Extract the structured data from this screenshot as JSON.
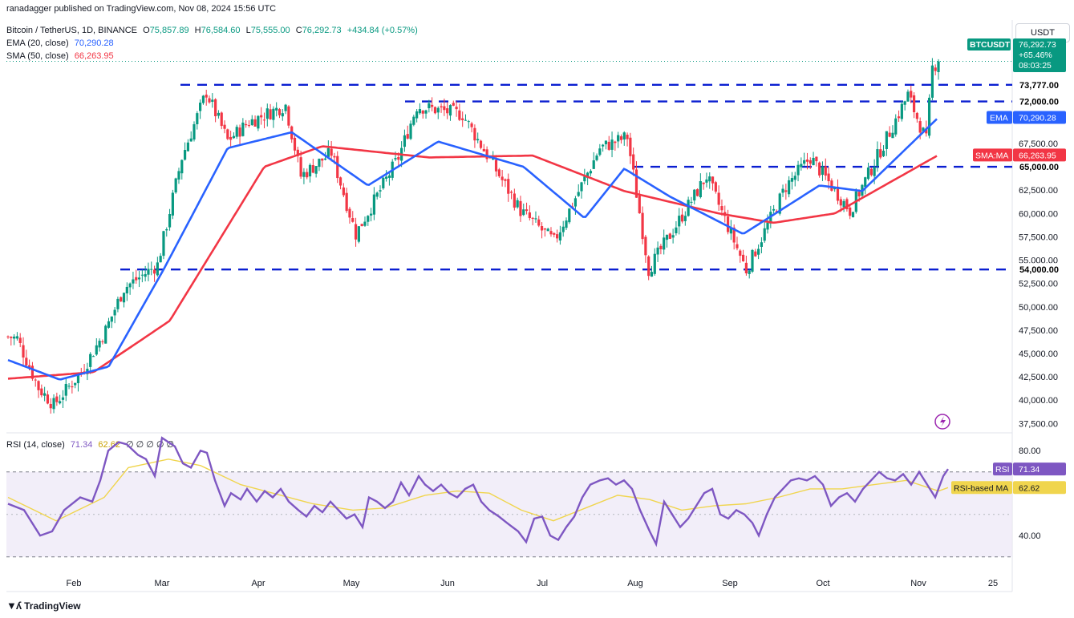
{
  "header": {
    "attribution": "ranadagger published on TradingView.com, Nov 08, 2024 15:56 UTC",
    "symbol": "Bitcoin / TetherUS, 1D, BINANCE",
    "open_label": "O",
    "open": "75,857.89",
    "high_label": "H",
    "high": "76,584.60",
    "low_label": "L",
    "low": "75,555.00",
    "close_label": "C",
    "close": "76,292.73",
    "change": "+434.84 (+0.57%)",
    "ema_label": "EMA (20, close)",
    "ema_value": "70,290.28",
    "sma_label": "SMA (50, close)",
    "sma_value": "66,263.95",
    "rsi_label": "RSI (14, close)",
    "rsi_value": "71.34",
    "rsi_ma_value": "62.62",
    "rsi_extra": "∅ ∅ ∅ ∅ ∅"
  },
  "currency_button": "USDT",
  "branding": "TradingView",
  "colors": {
    "up": "#089981",
    "down": "#f23645",
    "ema": "#2962ff",
    "sma": "#f23645",
    "rsi": "#7e57c2",
    "rsi_ma": "#f0d54e",
    "level": "#0b1fd1",
    "rsi_band": "#ede7f6"
  },
  "chart_data": [
    {
      "type": "candlestick",
      "title": "Bitcoin / TetherUS, 1D, BINANCE",
      "x_tick_labels": [
        "Feb",
        "Mar",
        "Apr",
        "May",
        "Jun",
        "Jul",
        "Aug",
        "Sep",
        "Oct",
        "Nov",
        "25"
      ],
      "y_tick_labels": [
        "37,500.00",
        "40,000.00",
        "42,500.00",
        "45,000.00",
        "47,500.00",
        "50,000.00",
        "52,500.00",
        "55,000.00",
        "57,500.00",
        "60,000.00",
        "62,500.00",
        "67,500.00"
      ],
      "ylim": [
        36500,
        79000
      ],
      "horizontal_levels": [
        {
          "label": "73,777.00",
          "value": 73777
        },
        {
          "label": "72,000.00",
          "value": 72000
        },
        {
          "label": "65,000.00",
          "value": 65000
        },
        {
          "label": "54,000.00",
          "value": 54000
        }
      ],
      "price_tags": [
        {
          "name": "BTCUSDT",
          "label": "BTCUSDT",
          "sub": [
            "76,292.73",
            "+65.46%",
            "08:03:25"
          ]
        },
        {
          "name": "EMA",
          "label": "EMA",
          "value": "70,290.28"
        },
        {
          "name": "SMA:MA",
          "label": "SMA:MA",
          "value": "66,263.95"
        }
      ],
      "series": [
        {
          "name": "BTCUSDT",
          "key_points": [
            [
              "2024-01-08",
              46800
            ],
            [
              "2024-01-11",
              46600
            ],
            [
              "2024-01-18",
              41300
            ],
            [
              "2024-01-23",
              39500
            ],
            [
              "2024-02-01",
              43000
            ],
            [
              "2024-02-09",
              47500
            ],
            [
              "2024-02-15",
              52000
            ],
            [
              "2024-02-26",
              54500
            ],
            [
              "2024-03-05",
              66000
            ],
            [
              "2024-03-13",
              73000
            ],
            [
              "2024-03-20",
              67800
            ],
            [
              "2024-03-27",
              69800
            ],
            [
              "2024-04-08",
              71600
            ],
            [
              "2024-04-13",
              64000
            ],
            [
              "2024-04-23",
              66500
            ],
            [
              "2024-05-01",
              57800
            ],
            [
              "2024-05-15",
              66000
            ],
            [
              "2024-05-21",
              71500
            ],
            [
              "2024-06-05",
              70600
            ],
            [
              "2024-06-24",
              60300
            ],
            [
              "2024-07-05",
              57000
            ],
            [
              "2024-07-20",
              67000
            ],
            [
              "2024-07-29",
              68200
            ],
            [
              "2024-08-05",
              54000
            ],
            [
              "2024-08-24",
              64000
            ],
            [
              "2024-09-06",
              53950
            ],
            [
              "2024-09-19",
              62900
            ],
            [
              "2024-09-27",
              66000
            ],
            [
              "2024-10-10",
              60300
            ],
            [
              "2024-10-21",
              67400
            ],
            [
              "2024-10-29",
              72700
            ],
            [
              "2024-11-04",
              67800
            ],
            [
              "2024-11-06",
              75600
            ],
            [
              "2024-11-08",
              76292
            ]
          ]
        },
        {
          "name": "EMA (20, close)",
          "key_points": [
            [
              "2024-01-08",
              44300
            ],
            [
              "2024-01-25",
              42200
            ],
            [
              "2024-02-10",
              43600
            ],
            [
              "2024-02-28",
              54000
            ],
            [
              "2024-03-20",
              67000
            ],
            [
              "2024-04-10",
              68700
            ],
            [
              "2024-05-05",
              63000
            ],
            [
              "2024-05-28",
              67700
            ],
            [
              "2024-06-25",
              65000
            ],
            [
              "2024-07-15",
              59500
            ],
            [
              "2024-07-28",
              64800
            ],
            [
              "2024-08-12",
              61800
            ],
            [
              "2024-09-05",
              57800
            ],
            [
              "2024-09-30",
              63000
            ],
            [
              "2024-10-14",
              62400
            ],
            [
              "2024-11-08",
              70290
            ]
          ]
        },
        {
          "name": "SMA (50, close)",
          "key_points": [
            [
              "2024-01-08",
              42300
            ],
            [
              "2024-02-05",
              43000
            ],
            [
              "2024-03-01",
              48500
            ],
            [
              "2024-04-01",
              65000
            ],
            [
              "2024-04-20",
              67200
            ],
            [
              "2024-05-25",
              66000
            ],
            [
              "2024-06-28",
              66200
            ],
            [
              "2024-07-28",
              62400
            ],
            [
              "2024-08-28",
              60000
            ],
            [
              "2024-09-15",
              59000
            ],
            [
              "2024-10-05",
              60000
            ],
            [
              "2024-11-08",
              66264
            ]
          ]
        }
      ]
    },
    {
      "type": "line",
      "title": "RSI (14, close)",
      "y_tick_labels": [
        "40.00",
        "80.00"
      ],
      "ylim": [
        25,
        88
      ],
      "bands": [
        30,
        70
      ],
      "series": [
        {
          "name": "RSI",
          "value_label": "71.34",
          "values": [
            [
              0,
              55
            ],
            [
              20,
              52
            ],
            [
              40,
              40
            ],
            [
              55,
              42
            ],
            [
              70,
              52
            ],
            [
              90,
              58
            ],
            [
              105,
              56
            ],
            [
              115,
              66
            ],
            [
              125,
              80
            ],
            [
              138,
              84
            ],
            [
              148,
              83
            ],
            [
              162,
              78
            ],
            [
              172,
              76
            ],
            [
              183,
              68
            ],
            [
              192,
              86
            ],
            [
              200,
              84
            ],
            [
              208,
              82
            ],
            [
              218,
              74
            ],
            [
              228,
              72
            ],
            [
              240,
              80
            ],
            [
              248,
              79
            ],
            [
              258,
              66
            ],
            [
              270,
              54
            ],
            [
              278,
              60
            ],
            [
              290,
              57
            ],
            [
              298,
              62
            ],
            [
              310,
              56
            ],
            [
              320,
              61
            ],
            [
              330,
              58
            ],
            [
              340,
              62
            ],
            [
              350,
              56
            ],
            [
              362,
              52
            ],
            [
              372,
              49
            ],
            [
              382,
              54
            ],
            [
              392,
              51
            ],
            [
              402,
              56
            ],
            [
              412,
              52
            ],
            [
              422,
              48
            ],
            [
              432,
              50
            ],
            [
              442,
              44
            ],
            [
              450,
              58
            ],
            [
              460,
              56
            ],
            [
              470,
              53
            ],
            [
              480,
              56
            ],
            [
              490,
              65
            ],
            [
              500,
              59
            ],
            [
              512,
              68
            ],
            [
              520,
              64
            ],
            [
              530,
              61
            ],
            [
              540,
              64
            ],
            [
              550,
              60
            ],
            [
              560,
              58
            ],
            [
              570,
              62
            ],
            [
              580,
              64
            ],
            [
              590,
              56
            ],
            [
              600,
              52
            ],
            [
              612,
              49
            ],
            [
              622,
              46
            ],
            [
              636,
              42
            ],
            [
              646,
              37
            ],
            [
              656,
              48
            ],
            [
              666,
              49
            ],
            [
              676,
              40
            ],
            [
              686,
              38
            ],
            [
              696,
              44
            ],
            [
              706,
              49
            ],
            [
              716,
              58
            ],
            [
              726,
              64
            ],
            [
              738,
              66
            ],
            [
              748,
              67
            ],
            [
              758,
              64
            ],
            [
              768,
              66
            ],
            [
              778,
              62
            ],
            [
              788,
              52
            ],
            [
              800,
              42
            ],
            [
              808,
              36
            ],
            [
              818,
              56
            ],
            [
              828,
              50
            ],
            [
              838,
              44
            ],
            [
              848,
              48
            ],
            [
              858,
              54
            ],
            [
              868,
              60
            ],
            [
              878,
              62
            ],
            [
              888,
              50
            ],
            [
              898,
              48
            ],
            [
              908,
              52
            ],
            [
              918,
              50
            ],
            [
              928,
              46
            ],
            [
              936,
              40
            ],
            [
              946,
              50
            ],
            [
              956,
              58
            ],
            [
              966,
              62
            ],
            [
              976,
              66
            ],
            [
              986,
              67
            ],
            [
              996,
              66
            ],
            [
              1006,
              68
            ],
            [
              1016,
              64
            ],
            [
              1026,
              54
            ],
            [
              1036,
              58
            ],
            [
              1046,
              60
            ],
            [
              1056,
              56
            ],
            [
              1066,
              62
            ],
            [
              1076,
              66
            ],
            [
              1086,
              70
            ],
            [
              1096,
              67
            ],
            [
              1106,
              66
            ],
            [
              1116,
              69
            ],
            [
              1126,
              64
            ],
            [
              1136,
              70
            ],
            [
              1146,
              64
            ],
            [
              1156,
              58
            ],
            [
              1166,
              68
            ],
            [
              1172,
              71.34
            ]
          ]
        },
        {
          "name": "RSI-based MA",
          "value_label": "62.62",
          "values": [
            [
              0,
              58
            ],
            [
              60,
              47
            ],
            [
              120,
              58
            ],
            [
              150,
              72
            ],
            [
              200,
              76
            ],
            [
              240,
              73
            ],
            [
              290,
              64
            ],
            [
              330,
              60
            ],
            [
              380,
              55
            ],
            [
              430,
              52
            ],
            [
              470,
              53
            ],
            [
              520,
              59
            ],
            [
              560,
              61
            ],
            [
              600,
              60
            ],
            [
              640,
              52
            ],
            [
              680,
              47
            ],
            [
              720,
              53
            ],
            [
              760,
              59
            ],
            [
              800,
              57
            ],
            [
              840,
              52
            ],
            [
              880,
              54
            ],
            [
              920,
              55
            ],
            [
              960,
              58
            ],
            [
              1000,
              62
            ],
            [
              1040,
              62
            ],
            [
              1080,
              64
            ],
            [
              1120,
              66
            ],
            [
              1160,
              61
            ],
            [
              1172,
              62.62
            ]
          ]
        }
      ]
    }
  ]
}
